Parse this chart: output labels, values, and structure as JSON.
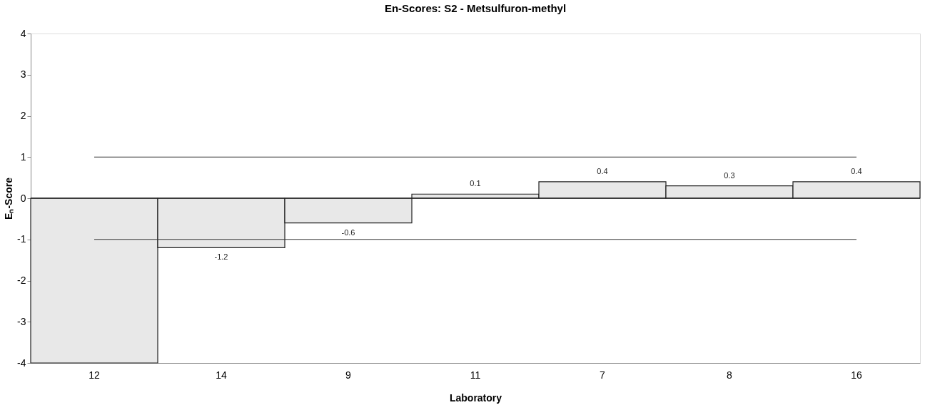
{
  "chart_data": {
    "type": "bar",
    "title": "En-Scores: S2 - Metsulfuron-methyl",
    "xlabel": "Laboratory",
    "ylabel": "Eₙ-Score",
    "categories": [
      "12",
      "14",
      "9",
      "11",
      "7",
      "8",
      "16"
    ],
    "values": [
      -4,
      -1.2,
      -0.6,
      0.1,
      0.4,
      0.3,
      0.4
    ],
    "value_labels": [
      null,
      "-1.2",
      "-0.6",
      "0.1",
      "0.4",
      "0.3",
      "0.4"
    ],
    "color": "#e8e8e8",
    "ylim": [
      -4,
      4
    ],
    "yticks": [
      -4,
      -3,
      -2,
      -1,
      0,
      1,
      2,
      3,
      4
    ],
    "ref_lines": [
      {
        "axis": "y",
        "value": 1,
        "color": "#333333"
      },
      {
        "axis": "y",
        "value": -1,
        "color": "#333333"
      }
    ],
    "grid": false
  }
}
